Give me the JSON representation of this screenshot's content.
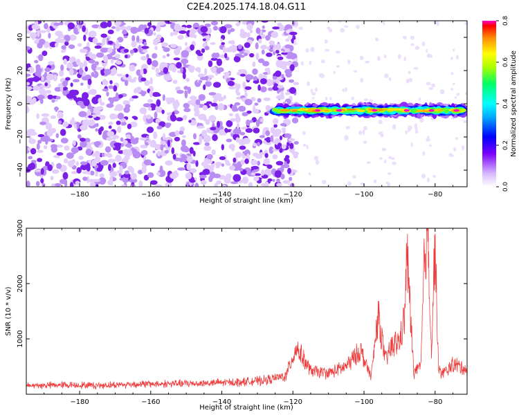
{
  "page": {
    "title": "C2E4.2025.174.18.04.G11"
  },
  "colors": {
    "snr_line": "#ee3b3b",
    "axis": "#000000",
    "bg": "#ffffff"
  },
  "chart_data": [
    {
      "type": "heatmap",
      "title": "C2E4.2025.174.18.04.G11",
      "xlabel": "Height of straight line (km)",
      "ylabel": "Frequency (Hz)",
      "xlim": [
        -195,
        -71
      ],
      "ylim": [
        -50,
        50
      ],
      "xticks": [
        -180,
        -160,
        -140,
        -120,
        -100,
        -80
      ],
      "yticks": [
        -40,
        -20,
        0,
        20,
        40
      ],
      "colorbar": {
        "label": "Normalized spectral amplitude",
        "range": [
          0,
          0.8
        ],
        "ticks": [
          "0.0",
          "0.2",
          "0.4",
          "0.6",
          "0.8"
        ],
        "colormap": "rainbow"
      },
      "features": [
        {
          "name": "noise",
          "x_range": [
            -195,
            -122
          ],
          "freq_range": [
            -50,
            50
          ],
          "amplitude": 0.1
        },
        {
          "name": "signal band",
          "x_range": [
            -125,
            -72
          ],
          "freq_center": -4,
          "amplitude_range": [
            0.2,
            0.8
          ]
        }
      ]
    },
    {
      "type": "line",
      "xlabel": "Height of straight line (km)",
      "ylabel": "SNR (10 * v/v)",
      "xlim": [
        -195,
        -71
      ],
      "ylim": [
        0,
        3000
      ],
      "xticks": [
        -180,
        -160,
        -140,
        -120,
        -100,
        -80
      ],
      "yticks": [
        1000,
        2000,
        3000
      ],
      "series": [
        {
          "x": [
            -195,
            -185,
            -175,
            -165,
            -155,
            -145,
            -135,
            -128,
            -122,
            -119,
            -115,
            -110,
            -105,
            -101,
            -98,
            -96,
            -94,
            -92,
            -90,
            -88.5,
            -88,
            -87,
            -86,
            -84,
            -83,
            -82,
            -81,
            -80.2,
            -80,
            -79,
            -77,
            -75,
            -73,
            -71
          ],
          "y": [
            150,
            170,
            160,
            180,
            190,
            200,
            220,
            250,
            330,
            850,
            420,
            380,
            500,
            800,
            300,
            1450,
            600,
            900,
            950,
            1400,
            2650,
            1500,
            400,
            500,
            2500,
            2980,
            700,
            2500,
            2600,
            400,
            400,
            550,
            500,
            450
          ]
        }
      ]
    }
  ]
}
